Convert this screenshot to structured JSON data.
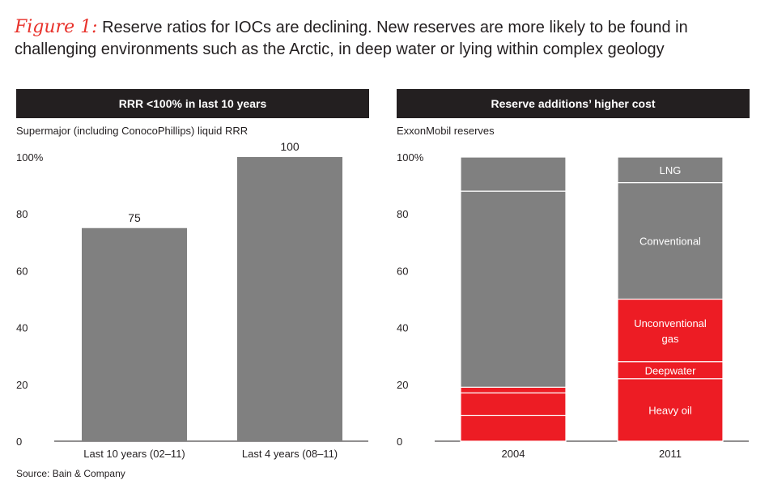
{
  "figure": {
    "label": "Figure 1:",
    "title": "Reserve ratios for IOCs are declining. New reserves are more likely to be found in challenging environments such as the Arctic, in deep water or lying within complex geology"
  },
  "source": "Source: Bain & Company",
  "colors": {
    "gray": "#808080",
    "red": "#ed1c24",
    "dark": "#231f20",
    "accent": "#e8322b"
  },
  "chart_data": [
    {
      "type": "bar",
      "panel_title": "RRR <100% in last 10 years",
      "subtitle": "Supermajor (including ConocoPhillips) liquid RRR",
      "categories": [
        "Last 10 years (02–11)",
        "Last 4 years (08–11)"
      ],
      "values": [
        75,
        100
      ],
      "value_labels": [
        "75",
        "100"
      ],
      "ylim": [
        0,
        100
      ],
      "yticks": [
        "0",
        "20",
        "40",
        "60",
        "80",
        "100%"
      ],
      "grid": false
    },
    {
      "type": "bar",
      "stacked": true,
      "panel_title": "Reserve additions’ higher cost",
      "subtitle": "ExxonMobil reserves",
      "categories": [
        "2004",
        "2011"
      ],
      "ylim": [
        0,
        100
      ],
      "yticks": [
        "0",
        "20",
        "40",
        "60",
        "80",
        "100%"
      ],
      "grid": false,
      "series": [
        {
          "name": "Heavy oil",
          "color": "red",
          "values": [
            9,
            22
          ]
        },
        {
          "name": "Deepwater",
          "color": "red",
          "values": [
            8,
            6
          ]
        },
        {
          "name": "Unconventional gas",
          "color": "red",
          "values": [
            2,
            22
          ]
        },
        {
          "name": "Conventional",
          "color": "gray",
          "values": [
            69,
            41
          ]
        },
        {
          "name": "LNG",
          "color": "gray",
          "values": [
            12,
            9
          ]
        }
      ],
      "segment_labels_2011": [
        "Heavy oil",
        "Deepwater",
        "Unconventional",
        "gas",
        "Conventional",
        "LNG"
      ]
    }
  ]
}
